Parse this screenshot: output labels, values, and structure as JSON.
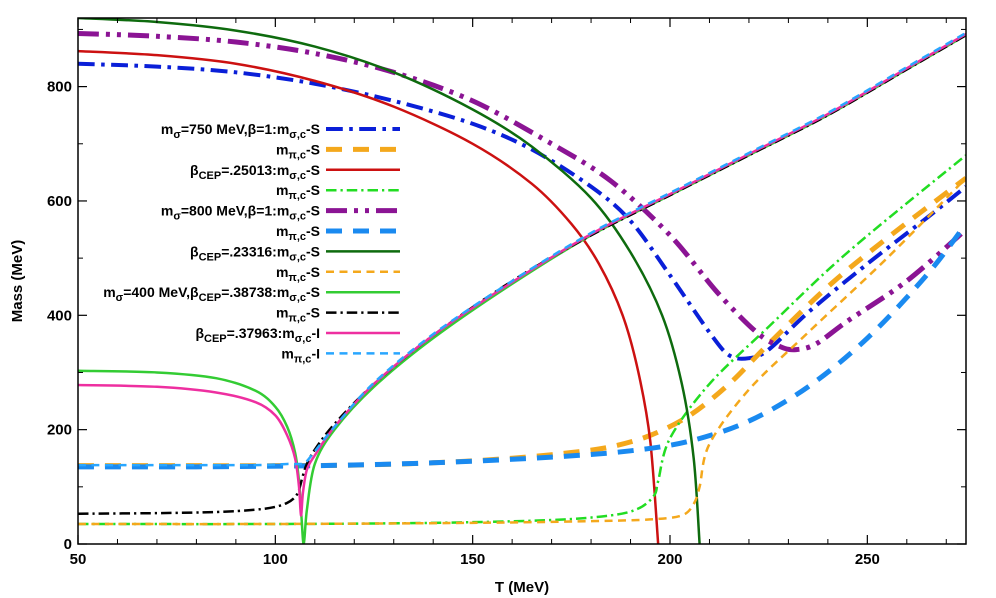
{
  "chart_data": {
    "type": "line",
    "title": "",
    "xlabel": "T (MeV)",
    "ylabel": "Mass (MeV)",
    "xlim": [
      50,
      275
    ],
    "ylim": [
      0,
      920
    ],
    "xticks": [
      50,
      100,
      150,
      200,
      250
    ],
    "yticks": [
      0,
      200,
      400,
      600,
      800
    ],
    "grid": false,
    "legend_position": "center-left",
    "series": [
      {
        "label": "m<sub>σ</sub>=750 MeV,β=1:m<sub>σ,c</sub>-S",
        "color": "#0a1fd8",
        "dash": "dashdot",
        "width": 4,
        "x": [
          50,
          70,
          90,
          110,
          130,
          150,
          165,
          180,
          190,
          200,
          210,
          215,
          220,
          225,
          235,
          250,
          265,
          275
        ],
        "y": [
          840,
          835,
          825,
          805,
          775,
          735,
          690,
          625,
          565,
          470,
          370,
          330,
          325,
          340,
          405,
          490,
          570,
          625
        ]
      },
      {
        "label": "m<sub>π,c</sub>-S",
        "color": "#f4a81c",
        "dash": "dash",
        "width": 5,
        "x": [
          50,
          75,
          100,
          120,
          140,
          160,
          175,
          185,
          195,
          205,
          215,
          225,
          240,
          255,
          275
        ],
        "y": [
          137,
          137,
          137,
          138,
          142,
          150,
          160,
          170,
          190,
          225,
          280,
          350,
          450,
          535,
          640
        ]
      },
      {
        "label": "β<sub>CEP</sub>=.25013:m<sub>σ,c</sub>-S",
        "color": "#cc1111",
        "dash": "solid",
        "width": 2.5,
        "x": [
          50,
          70,
          90,
          110,
          130,
          150,
          165,
          175,
          182,
          188,
          192,
          195,
          197
        ],
        "y": [
          862,
          855,
          840,
          810,
          765,
          700,
          630,
          560,
          490,
          400,
          300,
          180,
          0
        ]
      },
      {
        "label": "m<sub>π,c</sub>-S",
        "color": "#22dd22",
        "dash": "dashdot",
        "width": 2.5,
        "x": [
          50,
          100,
          140,
          170,
          185,
          192,
          196,
          197,
          200,
          210,
          225,
          245,
          275
        ],
        "y": [
          35,
          35,
          37,
          42,
          50,
          62,
          85,
          110,
          185,
          280,
          380,
          510,
          680
        ]
      },
      {
        "label": "m<sub>σ</sub>=800 MeV,β=1:m<sub>σ,c</sub>-S",
        "color": "#8b1494",
        "dash": "dashdotdot",
        "width": 5,
        "x": [
          50,
          70,
          90,
          110,
          130,
          150,
          170,
          185,
          200,
          212,
          222,
          228,
          232,
          237,
          245,
          260,
          275
        ],
        "y": [
          893,
          888,
          878,
          858,
          825,
          775,
          700,
          635,
          540,
          440,
          370,
          345,
          340,
          350,
          390,
          460,
          550
        ]
      },
      {
        "label": "m<sub>π,c</sub>-S",
        "color": "#1a8af0",
        "dash": "dash",
        "width": 5,
        "x": [
          50,
          80,
          110,
          140,
          170,
          190,
          205,
          220,
          235,
          250,
          265,
          275
        ],
        "y": [
          135,
          135,
          137,
          142,
          152,
          163,
          180,
          215,
          275,
          360,
          470,
          560
        ]
      },
      {
        "label": "β<sub>CEP</sub>=.23316:m<sub>σ,c</sub>-S",
        "color": "#0e6b0e",
        "dash": "solid",
        "width": 2.5,
        "x": [
          50,
          70,
          90,
          110,
          130,
          150,
          165,
          180,
          190,
          198,
          203,
          206,
          207.5
        ],
        "y": [
          920,
          913,
          898,
          870,
          825,
          760,
          695,
          605,
          510,
          400,
          280,
          150,
          0
        ]
      },
      {
        "label": "m<sub>π,c</sub>-S",
        "color": "#f4a81c",
        "dash": "dash",
        "width": 2.5,
        "x": [
          50,
          100,
          150,
          180,
          195,
          203,
          206,
          207.5,
          210,
          220,
          235,
          255,
          275
        ],
        "y": [
          35,
          35,
          37,
          40,
          43,
          50,
          70,
          100,
          175,
          270,
          370,
          500,
          640
        ]
      },
      {
        "label": "m<sub>σ</sub>=400 MeV,β<sub>CEP</sub>=.38738:m<sub>σ,c</sub>-S",
        "color": "#33cc33",
        "dash": "solid",
        "width": 2.5,
        "x": [
          50,
          70,
          85,
          95,
          100,
          103,
          105,
          106,
          106.6,
          107.2,
          108,
          110,
          115,
          125,
          140,
          160,
          180,
          200,
          220,
          240,
          260,
          275
        ],
        "y": [
          303,
          300,
          290,
          268,
          240,
          205,
          160,
          110,
          50,
          0,
          60,
          140,
          200,
          275,
          360,
          455,
          540,
          610,
          680,
          750,
          830,
          890
        ]
      },
      {
        "label": "m<sub>π,c</sub>-S",
        "color": "#000000",
        "dash": "dashdot",
        "width": 2.5,
        "x": [
          50,
          70,
          85,
          95,
          100,
          103,
          105,
          106,
          107,
          108,
          110,
          115,
          125,
          140,
          160,
          180,
          200,
          220,
          240,
          260,
          275
        ],
        "y": [
          53,
          54,
          56,
          60,
          65,
          72,
          82,
          95,
          120,
          140,
          165,
          210,
          280,
          365,
          460,
          540,
          610,
          680,
          750,
          830,
          890
        ]
      },
      {
        "label": "β<sub>CEP</sub>=.37963:m<sub>σ,c</sub>-I",
        "color": "#ee2fa0",
        "dash": "solid",
        "width": 2.5,
        "x": [
          50,
          70,
          85,
          95,
          100,
          103,
          105,
          106,
          106.5,
          107,
          108,
          110,
          115,
          125,
          140,
          160,
          180,
          200,
          220,
          240,
          260,
          275
        ],
        "y": [
          278,
          275,
          265,
          248,
          225,
          190,
          150,
          100,
          50,
          90,
          130,
          155,
          205,
          280,
          365,
          458,
          542,
          612,
          682,
          752,
          832,
          892
        ]
      },
      {
        "label": "m<sub>π,c</sub>-I",
        "color": "#29a6ff",
        "dash": "dash",
        "width": 2.5,
        "x": [
          50,
          70,
          85,
          95,
          100,
          103,
          105,
          106,
          106.5,
          107,
          108,
          110,
          115,
          125,
          140,
          160,
          180,
          200,
          220,
          240,
          260,
          275
        ],
        "y": [
          138,
          138,
          138,
          138,
          139,
          140,
          140,
          140,
          140,
          140,
          145,
          162,
          205,
          282,
          367,
          460,
          544,
          614,
          684,
          754,
          834,
          894
        ]
      }
    ]
  }
}
